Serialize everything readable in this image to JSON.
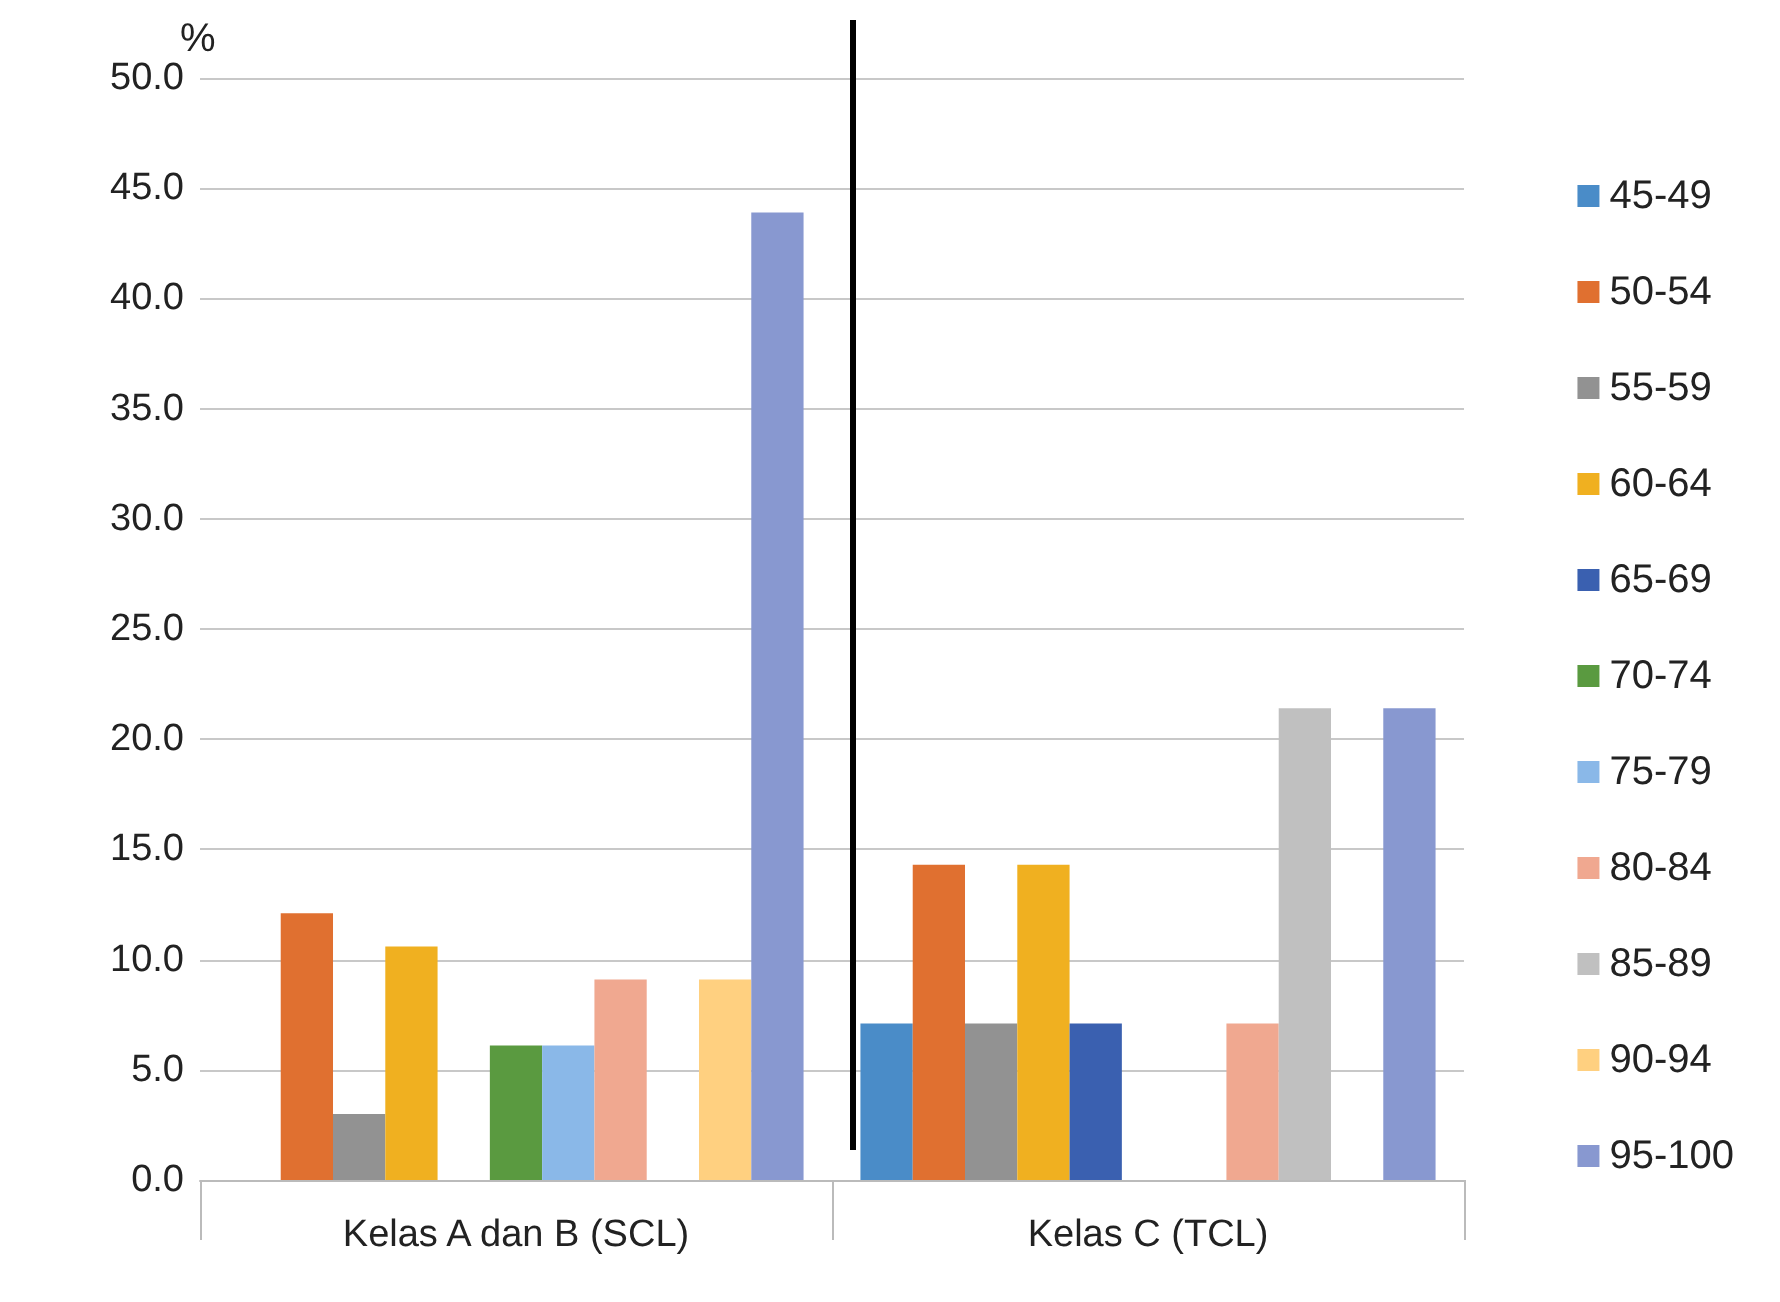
{
  "chart_data": {
    "type": "bar",
    "ylabel": "%",
    "categories": [
      "Kelas A dan B (SCL)",
      "Kelas C (TCL)"
    ],
    "series": [
      {
        "name": "45-49",
        "color": "#4a8cc8",
        "values": [
          0,
          7.1
        ]
      },
      {
        "name": "50-54",
        "color": "#e07030",
        "values": [
          12.1,
          14.3
        ]
      },
      {
        "name": "55-59",
        "color": "#929292",
        "values": [
          3.0,
          7.1
        ]
      },
      {
        "name": "60-64",
        "color": "#f0b020",
        "values": [
          10.6,
          14.3
        ]
      },
      {
        "name": "65-69",
        "color": "#3a60b0",
        "values": [
          0,
          7.1
        ]
      },
      {
        "name": "70-74",
        "color": "#5a9a40",
        "values": [
          6.1,
          0
        ]
      },
      {
        "name": "75-79",
        "color": "#8ab8e8",
        "values": [
          6.1,
          0
        ]
      },
      {
        "name": "80-84",
        "color": "#f0a890",
        "values": [
          9.1,
          7.1
        ]
      },
      {
        "name": "85-89",
        "color": "#c0c0c0",
        "values": [
          0,
          21.4
        ]
      },
      {
        "name": "90-94",
        "color": "#ffd080",
        "values": [
          9.1,
          0
        ]
      },
      {
        "name": "95-100",
        "color": "#8898d0",
        "values": [
          43.9,
          21.4
        ]
      }
    ],
    "ylim": [
      0,
      50
    ],
    "yticks": [
      {
        "value": 0,
        "label": "0.0"
      },
      {
        "value": 5,
        "label": "5.0"
      },
      {
        "value": 10,
        "label": "10.0"
      },
      {
        "value": 15,
        "label": "15.0"
      },
      {
        "value": 20,
        "label": "20.0"
      },
      {
        "value": 25,
        "label": "25.0"
      },
      {
        "value": 30,
        "label": "30.0"
      },
      {
        "value": 35,
        "label": "35.0"
      },
      {
        "value": 40,
        "label": "40.0"
      },
      {
        "value": 45,
        "label": "45.0"
      },
      {
        "value": 50,
        "label": "50.0"
      }
    ],
    "grid": "y",
    "legend": "right"
  }
}
